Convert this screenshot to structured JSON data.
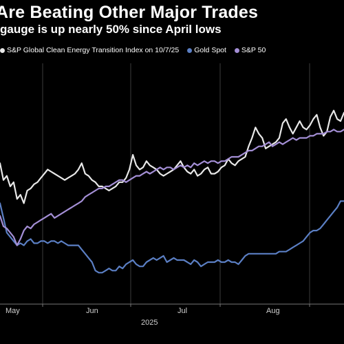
{
  "chart_data": {
    "type": "line",
    "title": "Are Beating Other Major Trades",
    "subtitle": "gauge is up nearly 50% since April lows",
    "xlabel": "2025",
    "ylabel": "",
    "x_ticks": [
      "May",
      "Jun",
      "Jul",
      "Aug"
    ],
    "grid": true,
    "legend": {
      "placement": "top",
      "items": [
        {
          "label": "S&P Global Clean Energy Transition Index on 10/7/25",
          "color": "#e8e8e8"
        },
        {
          "label": "Gold Spot",
          "color": "#5b7fc4"
        },
        {
          "label": "S&P 50",
          "color": "#a48fd6"
        }
      ]
    },
    "ylim": [
      0,
      100
    ],
    "series": [
      {
        "name": "S&P Global Clean Energy Transition Index on 10/7/25",
        "color": "#e8e8e8",
        "values": [
          63,
          55,
          57,
          52,
          54,
          46,
          48,
          44,
          50,
          51,
          53,
          54,
          56,
          58,
          60,
          59,
          58,
          57,
          56,
          55,
          56,
          57,
          58,
          60,
          63,
          58,
          57,
          55,
          54,
          52,
          52,
          51,
          50,
          51,
          52,
          54,
          54,
          56,
          60,
          67,
          62,
          60,
          61,
          64,
          62,
          61,
          60,
          58,
          57,
          58,
          59,
          60,
          62,
          64,
          61,
          59,
          58,
          60,
          57,
          58,
          60,
          61,
          58,
          58,
          59,
          61,
          62,
          65,
          63,
          62,
          64,
          65,
          66,
          71,
          75,
          80,
          77,
          75,
          70,
          71,
          72,
          73,
          75,
          82,
          84,
          80,
          77,
          80,
          83,
          80,
          79,
          81,
          84,
          86,
          80,
          76,
          78,
          85,
          88,
          84,
          83,
          87
        ]
      },
      {
        "name": "Gold Spot",
        "color": "#5b7fc4",
        "values": [
          44,
          37,
          30,
          28,
          26,
          24,
          25,
          24,
          26,
          27,
          25,
          25,
          26,
          26,
          25,
          26,
          26,
          25,
          26,
          25,
          24,
          24,
          24,
          24,
          22,
          20,
          18,
          16,
          12,
          11,
          11,
          12,
          13,
          12,
          12,
          14,
          13,
          15,
          16,
          17,
          15,
          14,
          14,
          16,
          17,
          18,
          17,
          18,
          19,
          16,
          17,
          18,
          17,
          17,
          17,
          16,
          15,
          17,
          16,
          14,
          15,
          16,
          16,
          16,
          17,
          16,
          16,
          17,
          16,
          16,
          15,
          17,
          19,
          20,
          20,
          20,
          20,
          20,
          20,
          20,
          20,
          20,
          21,
          21,
          21,
          22,
          23,
          24,
          25,
          26,
          28,
          30,
          31,
          31,
          32,
          34,
          36,
          38,
          40,
          42,
          45,
          45
        ]
      },
      {
        "name": "S&P 50",
        "color": "#a48fd6",
        "values": [
          38,
          33,
          32,
          30,
          28,
          24,
          27,
          31,
          33,
          32,
          34,
          35,
          36,
          37,
          38,
          39,
          37,
          38,
          39,
          40,
          41,
          42,
          43,
          44,
          45,
          47,
          48,
          49,
          50,
          51,
          51,
          52,
          52,
          53,
          54,
          55,
          55,
          54,
          55,
          56,
          57,
          57,
          58,
          59,
          58,
          59,
          60,
          61,
          60,
          61,
          61,
          60,
          61,
          62,
          61,
          62,
          61,
          63,
          62,
          63,
          64,
          63,
          64,
          64,
          63,
          64,
          64,
          65,
          66,
          66,
          66,
          67,
          68,
          69,
          69,
          70,
          71,
          71,
          72,
          73,
          71,
          72,
          73,
          72,
          73,
          74,
          75,
          74,
          75,
          75,
          75,
          76,
          76,
          77,
          77,
          77,
          78,
          78,
          79,
          78,
          78,
          79
        ]
      }
    ]
  }
}
